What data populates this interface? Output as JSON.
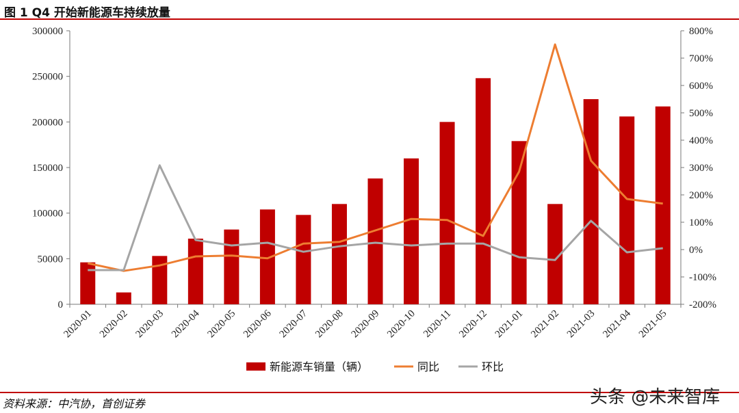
{
  "header": {
    "title": "图 1 Q4 开始新能源车持续放量"
  },
  "footer": {
    "source": "资料来源：中汽协，首创证券",
    "watermark": "头条 @未来智库"
  },
  "chart_data": {
    "type": "bar",
    "title": "图 1 Q4 开始新能源车持续放量",
    "categories": [
      "2020-01",
      "2020-02",
      "2020-03",
      "2020-04",
      "2020-05",
      "2020-06",
      "2020-07",
      "2020-08",
      "2020-09",
      "2020-10",
      "2020-11",
      "2020-12",
      "2021-01",
      "2021-02",
      "2021-03",
      "2021-04",
      "2021-05"
    ],
    "y_left": {
      "min": 0,
      "max": 300000,
      "ticks": [
        "0",
        "50000",
        "100000",
        "150000",
        "200000",
        "250000",
        "300000"
      ]
    },
    "y_right": {
      "min": -200,
      "max": 800,
      "unit": "%",
      "ticks": [
        "-200%",
        "-100%",
        "0%",
        "100%",
        "200%",
        "300%",
        "400%",
        "500%",
        "600%",
        "700%",
        "800%"
      ]
    },
    "series": [
      {
        "name": "新能源车销量（辆）",
        "type": "bar",
        "axis": "left",
        "color": "#c00000",
        "values": [
          46000,
          13000,
          53000,
          72000,
          82000,
          104000,
          98000,
          110000,
          138000,
          160000,
          200000,
          248000,
          179000,
          110000,
          225000,
          206000,
          217000
        ]
      },
      {
        "name": "同比",
        "type": "line",
        "axis": "right",
        "color": "#ed7d31",
        "values": [
          -50,
          -78,
          -58,
          -25,
          -22,
          -32,
          22,
          28,
          70,
          112,
          108,
          50,
          285,
          750,
          325,
          185,
          168
        ]
      },
      {
        "name": "环比",
        "type": "line",
        "axis": "right",
        "color": "#a5a5a5",
        "values": [
          -75,
          -75,
          308,
          35,
          15,
          25,
          -8,
          12,
          25,
          15,
          22,
          22,
          -28,
          -38,
          105,
          -10,
          5
        ]
      }
    ],
    "legend": {
      "position": "bottom-center"
    },
    "grid": false
  }
}
